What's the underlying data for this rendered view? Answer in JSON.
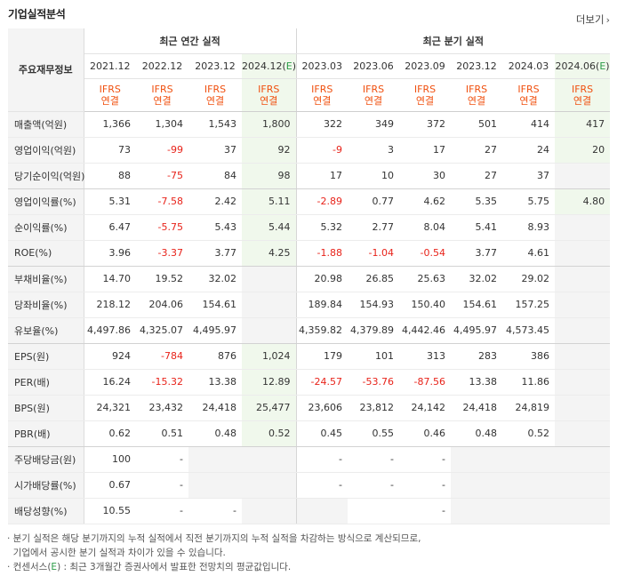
{
  "title": "기업실적분석",
  "more_label": "더보기",
  "header": {
    "row_label": "주요재무정보",
    "annual_group": "최근 연간 실적",
    "quarter_group": "최근 분기 실적",
    "periods": [
      "2021.12",
      "2022.12",
      "2023.12",
      "2024.12(E)",
      "2023.03",
      "2023.06",
      "2023.09",
      "2023.12",
      "2024.03",
      "2024.06(E)"
    ],
    "basis_line1": "IFRS",
    "basis_line2": "연결"
  },
  "rows": [
    {
      "label": "매출액(억원)",
      "values": [
        "1,366",
        "1,304",
        "1,543",
        "1,800",
        "322",
        "349",
        "372",
        "501",
        "414",
        "417"
      ]
    },
    {
      "label": "영업이익(억원)",
      "values": [
        "73",
        "-99",
        "37",
        "92",
        "-9",
        "3",
        "17",
        "27",
        "24",
        "20"
      ]
    },
    {
      "label": "당기순이익(억원)",
      "values": [
        "88",
        "-75",
        "84",
        "98",
        "17",
        "10",
        "30",
        "27",
        "37",
        ""
      ]
    },
    {
      "label": "영업이익률(%)",
      "values": [
        "5.31",
        "-7.58",
        "2.42",
        "5.11",
        "-2.89",
        "0.77",
        "4.62",
        "5.35",
        "5.75",
        "4.80"
      ]
    },
    {
      "label": "순이익률(%)",
      "values": [
        "6.47",
        "-5.75",
        "5.43",
        "5.44",
        "5.32",
        "2.77",
        "8.04",
        "5.41",
        "8.93",
        ""
      ]
    },
    {
      "label": "ROE(%)",
      "values": [
        "3.96",
        "-3.37",
        "3.77",
        "4.25",
        "-1.88",
        "-1.04",
        "-0.54",
        "3.77",
        "4.61",
        ""
      ]
    },
    {
      "label": "부채비율(%)",
      "values": [
        "14.70",
        "19.52",
        "32.02",
        "",
        "20.98",
        "26.85",
        "25.63",
        "32.02",
        "29.02",
        ""
      ]
    },
    {
      "label": "당좌비율(%)",
      "values": [
        "218.12",
        "204.06",
        "154.61",
        "",
        "189.84",
        "154.93",
        "150.40",
        "154.61",
        "157.25",
        ""
      ]
    },
    {
      "label": "유보율(%)",
      "values": [
        "4,497.86",
        "4,325.07",
        "4,495.97",
        "",
        "4,359.82",
        "4,379.89",
        "4,442.46",
        "4,495.97",
        "4,573.45",
        ""
      ]
    },
    {
      "label": "EPS(원)",
      "values": [
        "924",
        "-784",
        "876",
        "1,024",
        "179",
        "101",
        "313",
        "283",
        "386",
        ""
      ]
    },
    {
      "label": "PER(배)",
      "values": [
        "16.24",
        "-15.32",
        "13.38",
        "12.89",
        "-24.57",
        "-53.76",
        "-87.56",
        "13.38",
        "11.86",
        ""
      ]
    },
    {
      "label": "BPS(원)",
      "values": [
        "24,321",
        "23,432",
        "24,418",
        "25,477",
        "23,606",
        "23,812",
        "24,142",
        "24,418",
        "24,819",
        ""
      ]
    },
    {
      "label": "PBR(배)",
      "values": [
        "0.62",
        "0.51",
        "0.48",
        "0.52",
        "0.45",
        "0.55",
        "0.46",
        "0.48",
        "0.52",
        ""
      ]
    },
    {
      "label": "주당배당금(원)",
      "values": [
        "100",
        "-",
        "",
        "",
        "-",
        "-",
        "-",
        "",
        "",
        ""
      ]
    },
    {
      "label": "시가배당률(%)",
      "values": [
        "0.67",
        "-",
        "",
        "",
        "-",
        "-",
        "-",
        "",
        "",
        ""
      ]
    },
    {
      "label": "배당성향(%)",
      "values": [
        "10.55",
        "-",
        "-",
        "",
        "",
        "",
        "-",
        "",
        "",
        ""
      ]
    }
  ],
  "notes": {
    "line1": "· 분기 실적은 해당 분기까지의 누적 실적에서 직전 분기까지의 누적 실적을 차감하는 방식으로 계산되므로,",
    "line2": "  기업에서 공시한 분기 실적과 차이가 있을 수 있습니다.",
    "line3_a": "· 컨센서스(",
    "line3_e": "E",
    "line3_b": ") : 최근 3개월간 증권사에서 발표한 전망치의 평균값입니다."
  }
}
